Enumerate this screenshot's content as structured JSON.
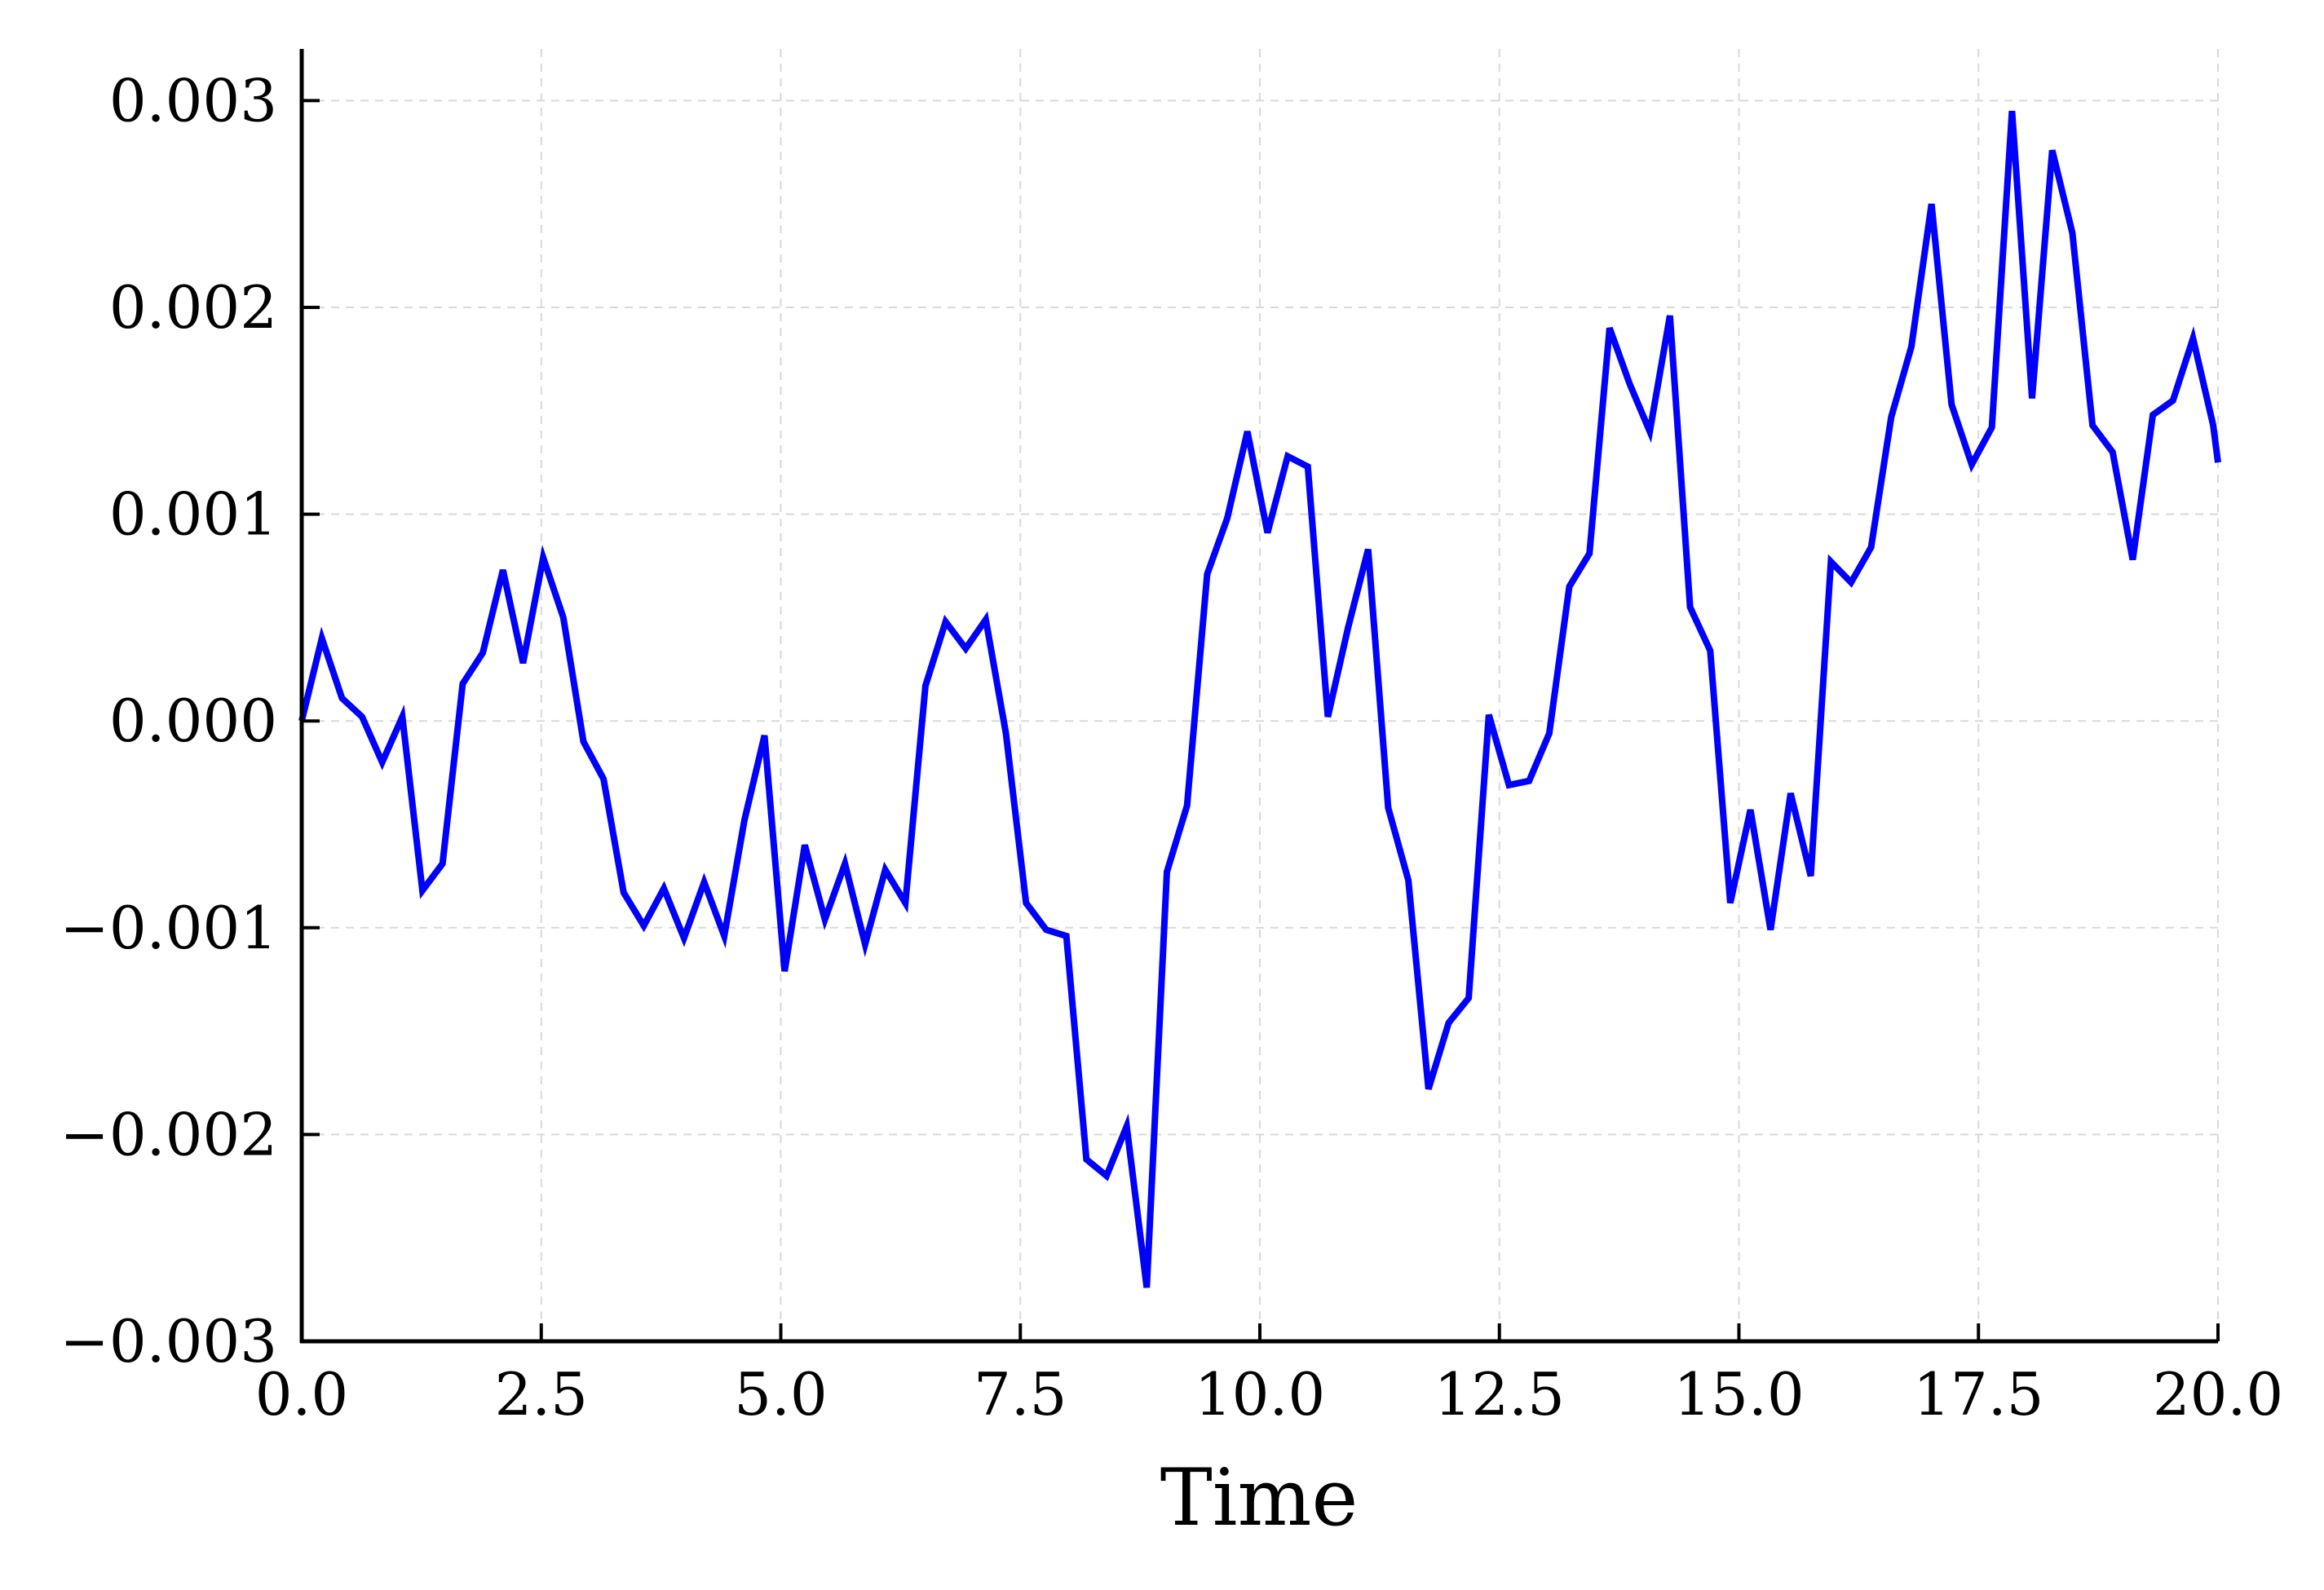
{
  "chart_data": {
    "type": "line",
    "title": "",
    "xlabel": "Time",
    "ylabel": "",
    "xlim": [
      0,
      20
    ],
    "ylim": [
      -0.003,
      0.00325
    ],
    "grid": true,
    "legend": "none",
    "x_ticks": [
      0.0,
      2.5,
      5.0,
      7.5,
      10.0,
      12.5,
      15.0,
      17.5,
      20.0
    ],
    "x_tick_labels": [
      "0.0",
      "2.5",
      "5.0",
      "7.5",
      "10.0",
      "12.5",
      "15.0",
      "17.5",
      "20.0"
    ],
    "y_ticks": [
      -0.003,
      -0.002,
      -0.001,
      0.0,
      0.001,
      0.002,
      0.003
    ],
    "y_tick_labels": [
      "−0.003",
      "−0.002",
      "−0.001",
      "0.000",
      "0.001",
      "0.002",
      "0.003"
    ],
    "colors": {
      "series": "#0000ff",
      "axis": "#000000",
      "grid": "#d9d9d9"
    },
    "series": [
      {
        "x": [
          0.0,
          0.21,
          0.42,
          0.63,
          0.84,
          1.05,
          1.26,
          1.47,
          1.68,
          1.89,
          2.1,
          2.31,
          2.52,
          2.73,
          2.94,
          3.15,
          3.36,
          3.57,
          3.78,
          3.99,
          4.2,
          4.41,
          4.62,
          4.83,
          5.04,
          5.25,
          5.46,
          5.67,
          5.88,
          6.09,
          6.3,
          6.51,
          6.72,
          6.93,
          7.14,
          7.35,
          7.56,
          7.77,
          7.98,
          8.19,
          8.4,
          8.61,
          8.82,
          9.03,
          9.24,
          9.45,
          9.66,
          9.87,
          10.08,
          10.29,
          10.5,
          10.71,
          10.92,
          11.13,
          11.34,
          11.55,
          11.76,
          11.97,
          12.18,
          12.39,
          12.6,
          12.81,
          13.02,
          13.23,
          13.44,
          13.65,
          13.86,
          14.07,
          14.28,
          14.49,
          14.7,
          14.91,
          15.12,
          15.33,
          15.54,
          15.75,
          15.96,
          16.17,
          16.38,
          16.59,
          16.8,
          17.01,
          17.22,
          17.43,
          17.64,
          17.85,
          18.06,
          18.27,
          18.48,
          18.69,
          18.9,
          19.11,
          19.32,
          19.53,
          19.74,
          19.95,
          20.0
        ],
        "y": [
          0.0,
          0.0004,
          0.00011,
          2e-05,
          -0.0002,
          2e-05,
          -0.00082,
          -0.00069,
          0.00018,
          0.00033,
          0.00073,
          0.00028,
          0.00079,
          0.0005,
          -0.0001,
          -0.00028,
          -0.00083,
          -0.00099,
          -0.00081,
          -0.00105,
          -0.00078,
          -0.00104,
          -0.00048,
          -7e-05,
          -0.00121,
          -0.0006,
          -0.00096,
          -0.00069,
          -0.00108,
          -0.00072,
          -0.00088,
          0.00017,
          0.00048,
          0.00035,
          0.00049,
          -6e-05,
          -0.00088,
          -0.00101,
          -0.00104,
          -0.00212,
          -0.0022,
          -0.00196,
          -0.00274,
          -0.00073,
          -0.00041,
          0.00071,
          0.00098,
          0.0014,
          0.00091,
          0.00128,
          0.00123,
          2e-05,
          0.00045,
          0.00083,
          -0.00042,
          -0.00077,
          -0.00178,
          -0.00146,
          -0.00134,
          3e-05,
          -0.00031,
          -0.00029,
          -6e-05,
          0.00065,
          0.00081,
          0.0019,
          0.00163,
          0.0014,
          0.00196,
          0.00055,
          0.00034,
          -0.00088,
          -0.00043,
          -0.00101,
          -0.00035,
          -0.00075,
          0.00077,
          0.00067,
          0.00084,
          0.00147,
          0.00181,
          0.0025,
          0.00153,
          0.00124,
          0.00142,
          0.00295,
          0.00156,
          0.00276,
          0.00236,
          0.00143,
          0.0013,
          0.00078,
          0.00148,
          0.00155,
          0.00185,
          0.00143,
          0.00125
        ]
      }
    ]
  }
}
